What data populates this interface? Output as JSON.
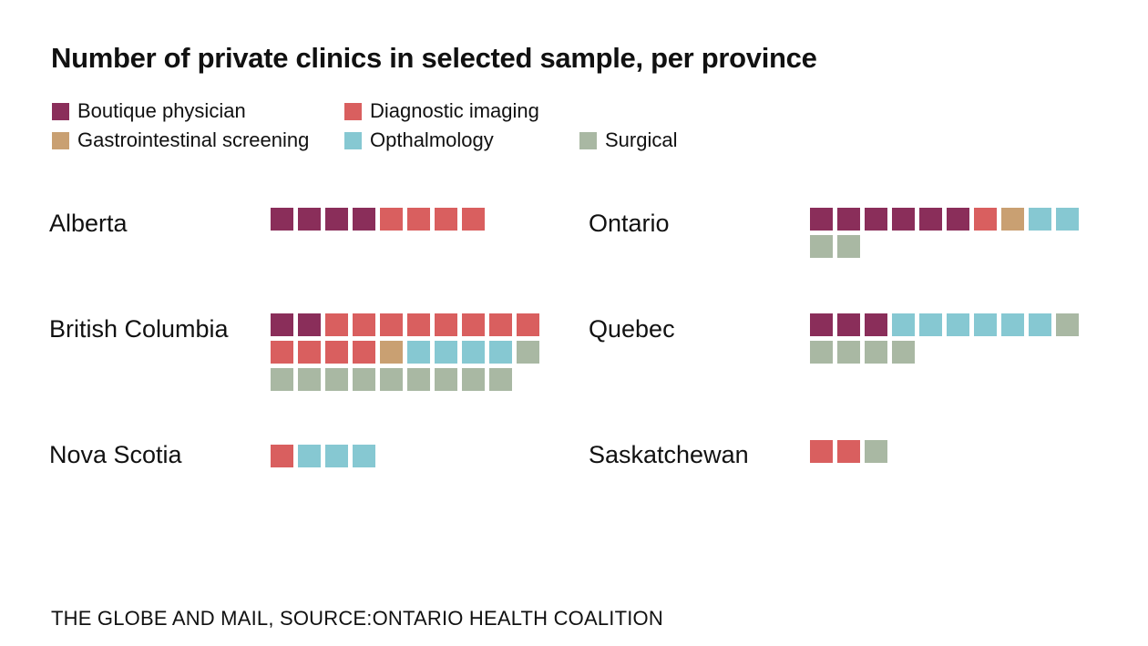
{
  "chart_data": {
    "type": "waffle",
    "title": "Number of private clinics in selected sample, per province",
    "legend": [
      {
        "key": "boutique",
        "label": "Boutique physician",
        "color": "#8a2e5a"
      },
      {
        "key": "diagnostic",
        "label": "Diagnostic imaging",
        "color": "#d95f5f"
      },
      {
        "key": "gastro",
        "label": "Gastrointestinal screening",
        "color": "#c9a072"
      },
      {
        "key": "opthalmology",
        "label": "Opthalmology",
        "color": "#86c8d2"
      },
      {
        "key": "surgical",
        "label": "Surgical",
        "color": "#a9b8a3"
      }
    ],
    "provinces": [
      {
        "name": "Alberta",
        "counts": {
          "boutique": 4,
          "diagnostic": 4,
          "gastro": 0,
          "opthalmology": 0,
          "surgical": 0
        }
      },
      {
        "name": "Ontario",
        "counts": {
          "boutique": 6,
          "diagnostic": 1,
          "gastro": 1,
          "opthalmology": 2,
          "surgical": 2
        }
      },
      {
        "name": "British Columbia",
        "counts": {
          "boutique": 2,
          "diagnostic": 12,
          "gastro": 1,
          "opthalmology": 4,
          "surgical": 10
        }
      },
      {
        "name": "Quebec",
        "counts": {
          "boutique": 3,
          "diagnostic": 0,
          "gastro": 0,
          "opthalmology": 6,
          "surgical": 5
        }
      },
      {
        "name": "Nova Scotia",
        "counts": {
          "boutique": 0,
          "diagnostic": 1,
          "gastro": 0,
          "opthalmology": 3,
          "surgical": 0
        }
      },
      {
        "name": "Saskatchewan",
        "counts": {
          "boutique": 0,
          "diagnostic": 2,
          "gastro": 0,
          "opthalmology": 0,
          "surgical": 1
        }
      }
    ]
  },
  "source": "THE GLOBE AND MAIL, SOURCE:ONTARIO HEALTH COALITION"
}
